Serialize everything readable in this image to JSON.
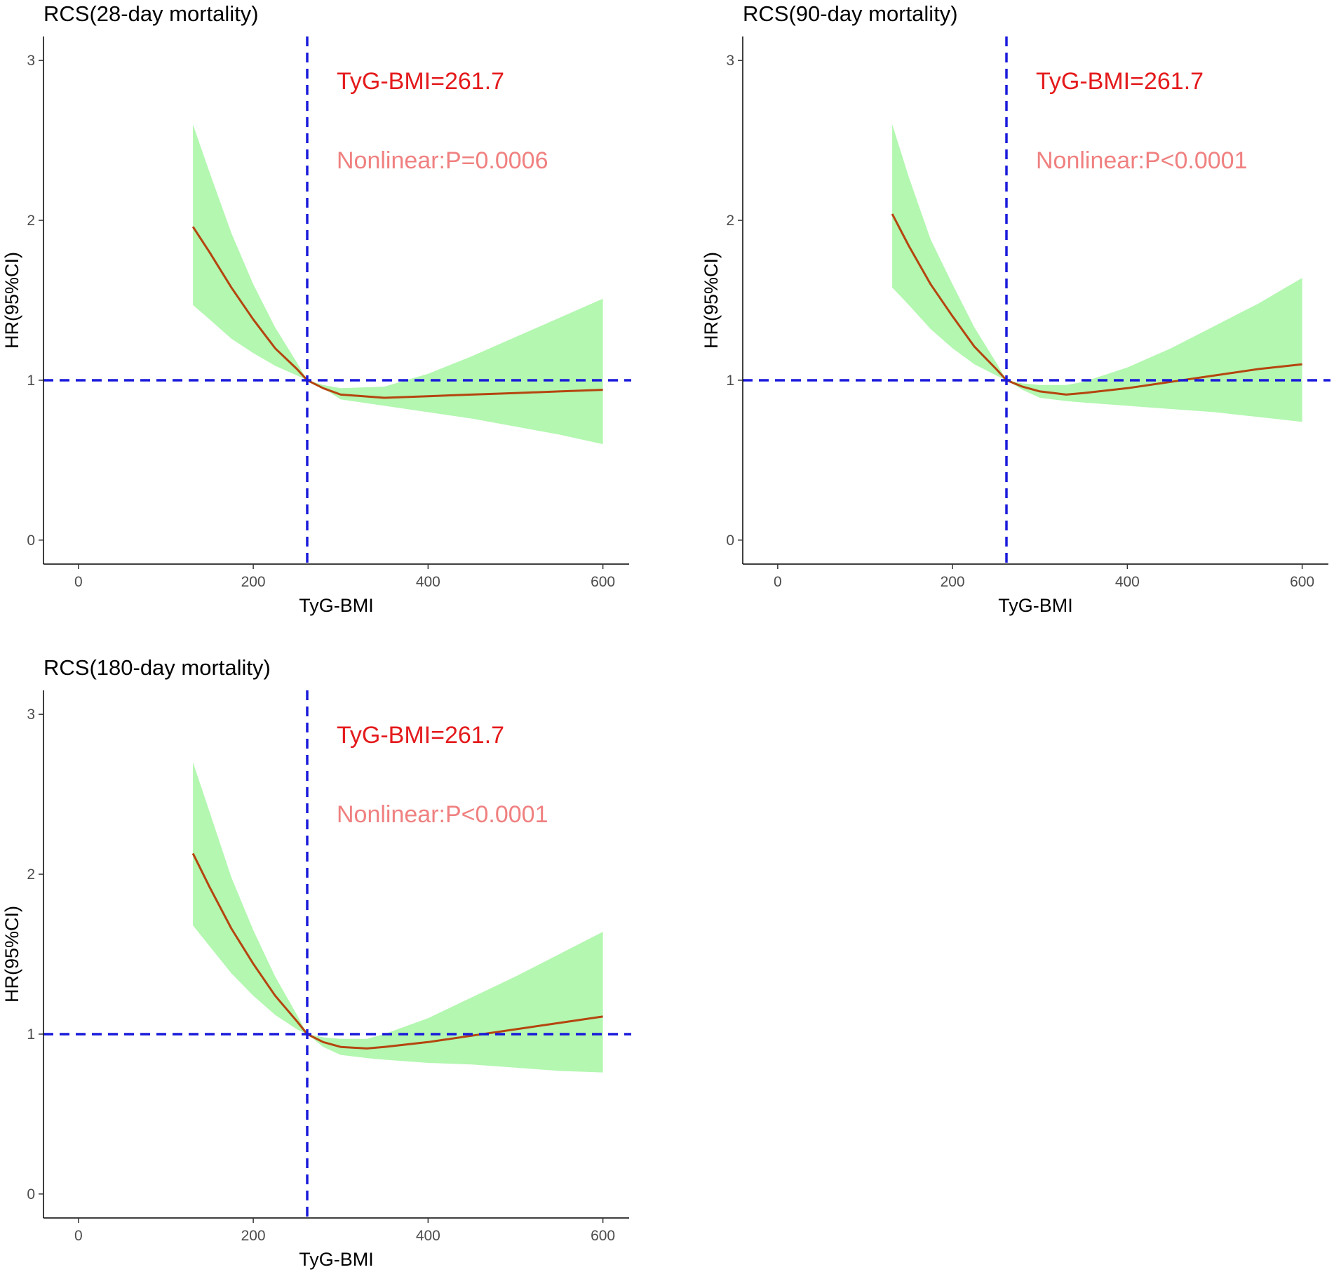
{
  "chart_data": [
    {
      "type": "line",
      "title": "RCS(28-day mortality)",
      "xlabel": "TyG-BMI",
      "ylabel": "HR(95%CI)",
      "xlim": [
        -40,
        630
      ],
      "ylim": [
        -0.15,
        3.15
      ],
      "x_ticks": [
        0,
        200,
        400,
        600
      ],
      "x_tick_labels": [
        "0",
        "200",
        "400",
        "600"
      ],
      "y_ticks": [
        0,
        1,
        2,
        3
      ],
      "y_tick_labels": [
        "0",
        "1",
        "2",
        "3"
      ],
      "reference_x": 261.7,
      "reference_y": 1,
      "annotations": [
        {
          "text": "TyG-BMI=261.7",
          "color": "#e41a1c"
        },
        {
          "text": "Nonlinear:P=0.0006",
          "color": "#f08080"
        }
      ],
      "band_color": "#b3f7b0",
      "line_color": "#b5450f",
      "reference_color": "#1a1adb",
      "x": [
        131,
        150,
        175,
        200,
        225,
        250,
        261.7,
        280,
        300,
        350,
        400,
        450,
        500,
        550,
        600
      ],
      "hr": [
        1.96,
        1.8,
        1.58,
        1.38,
        1.2,
        1.07,
        1.0,
        0.95,
        0.91,
        0.89,
        0.9,
        0.91,
        0.92,
        0.93,
        0.94
      ],
      "lower": [
        1.47,
        1.38,
        1.26,
        1.17,
        1.09,
        1.03,
        1.0,
        0.95,
        0.88,
        0.84,
        0.8,
        0.76,
        0.71,
        0.66,
        0.6
      ],
      "upper": [
        2.6,
        2.3,
        1.92,
        1.6,
        1.33,
        1.11,
        1.0,
        0.97,
        0.95,
        0.96,
        1.04,
        1.15,
        1.27,
        1.39,
        1.51
      ]
    },
    {
      "type": "line",
      "title": "RCS(90-day mortality)",
      "xlabel": "TyG-BMI",
      "ylabel": "HR(95%CI)",
      "xlim": [
        -40,
        630
      ],
      "ylim": [
        -0.15,
        3.15
      ],
      "x_ticks": [
        0,
        200,
        400,
        600
      ],
      "x_tick_labels": [
        "0",
        "200",
        "400",
        "600"
      ],
      "y_ticks": [
        0,
        1,
        2,
        3
      ],
      "y_tick_labels": [
        "0",
        "1",
        "2",
        "3"
      ],
      "reference_x": 261.7,
      "reference_y": 1,
      "annotations": [
        {
          "text": "TyG-BMI=261.7",
          "color": "#e41a1c"
        },
        {
          "text": "Nonlinear:P<0.0001",
          "color": "#f08080"
        }
      ],
      "band_color": "#b3f7b0",
      "line_color": "#b5450f",
      "reference_color": "#1a1adb",
      "x": [
        131,
        150,
        175,
        200,
        225,
        250,
        261.7,
        280,
        300,
        330,
        350,
        400,
        450,
        500,
        550,
        600
      ],
      "hr": [
        2.04,
        1.84,
        1.6,
        1.4,
        1.21,
        1.07,
        1.0,
        0.96,
        0.93,
        0.91,
        0.92,
        0.95,
        0.99,
        1.03,
        1.07,
        1.1
      ],
      "lower": [
        1.58,
        1.47,
        1.32,
        1.2,
        1.1,
        1.03,
        1.0,
        0.94,
        0.89,
        0.87,
        0.86,
        0.84,
        0.82,
        0.8,
        0.77,
        0.74
      ],
      "upper": [
        2.6,
        2.27,
        1.88,
        1.6,
        1.33,
        1.11,
        1.0,
        0.98,
        0.97,
        0.97,
        0.99,
        1.08,
        1.2,
        1.34,
        1.48,
        1.64
      ]
    },
    {
      "type": "line",
      "title": "RCS(180-day mortality)",
      "xlabel": "TyG-BMI",
      "ylabel": "HR(95%CI)",
      "xlim": [
        -40,
        630
      ],
      "ylim": [
        -0.15,
        3.15
      ],
      "x_ticks": [
        0,
        200,
        400,
        600
      ],
      "x_tick_labels": [
        "0",
        "200",
        "400",
        "600"
      ],
      "y_ticks": [
        0,
        1,
        2,
        3
      ],
      "y_tick_labels": [
        "0",
        "1",
        "2",
        "3"
      ],
      "reference_x": 261.7,
      "reference_y": 1,
      "annotations": [
        {
          "text": "TyG-BMI=261.7",
          "color": "#e41a1c"
        },
        {
          "text": "Nonlinear:P<0.0001",
          "color": "#f08080"
        }
      ],
      "band_color": "#b3f7b0",
      "line_color": "#b5450f",
      "reference_color": "#1a1adb",
      "x": [
        131,
        150,
        175,
        200,
        225,
        250,
        261.7,
        280,
        300,
        330,
        350,
        400,
        450,
        500,
        550,
        600
      ],
      "hr": [
        2.13,
        1.92,
        1.66,
        1.44,
        1.24,
        1.08,
        1.0,
        0.95,
        0.92,
        0.91,
        0.92,
        0.95,
        0.99,
        1.03,
        1.07,
        1.11
      ],
      "lower": [
        1.68,
        1.55,
        1.38,
        1.24,
        1.12,
        1.03,
        1.0,
        0.92,
        0.87,
        0.85,
        0.84,
        0.82,
        0.81,
        0.79,
        0.77,
        0.76
      ],
      "upper": [
        2.7,
        2.39,
        1.98,
        1.65,
        1.36,
        1.12,
        1.0,
        0.98,
        0.97,
        0.97,
        1.0,
        1.1,
        1.23,
        1.36,
        1.5,
        1.64
      ]
    }
  ]
}
